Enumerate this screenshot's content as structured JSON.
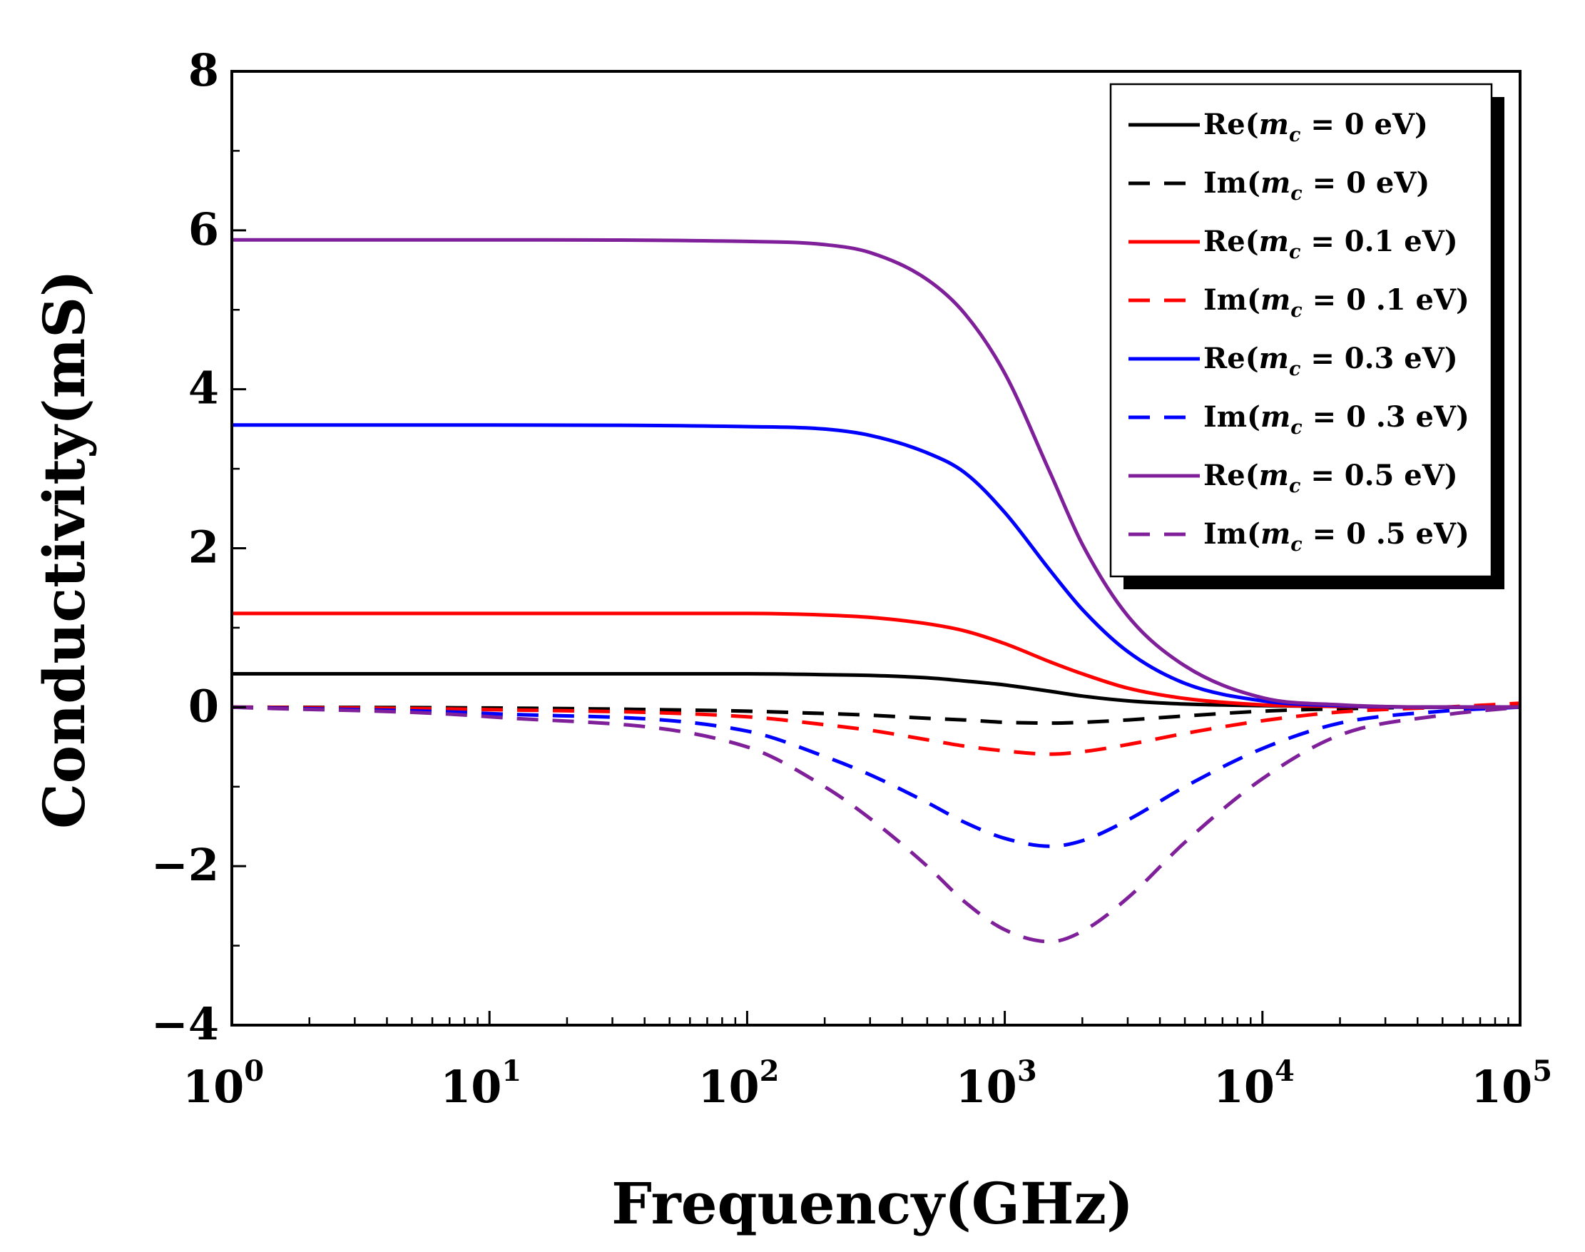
{
  "chart_data": {
    "type": "line",
    "title": "",
    "xlabel": "Frequency(GHz)",
    "ylabel": "Conductivity(mS)",
    "xscale": "log",
    "xlim": [
      1,
      100000
    ],
    "ylim": [
      -4,
      8
    ],
    "x_ticks": [
      {
        "base": "10",
        "exp": "0",
        "value": 1
      },
      {
        "base": "10",
        "exp": "1",
        "value": 10
      },
      {
        "base": "10",
        "exp": "2",
        "value": 100
      },
      {
        "base": "10",
        "exp": "3",
        "value": 1000
      },
      {
        "base": "10",
        "exp": "4",
        "value": 10000
      },
      {
        "base": "10",
        "exp": "5",
        "value": 100000
      }
    ],
    "y_ticks": [
      {
        "label": "8",
        "value": 8
      },
      {
        "label": "6",
        "value": 6
      },
      {
        "label": "4",
        "value": 4
      },
      {
        "label": "2",
        "value": 2
      },
      {
        "label": "0",
        "value": 0
      },
      {
        "label": "−2",
        "value": -2
      },
      {
        "label": "−4",
        "value": -4
      }
    ],
    "legend_position": "top-right",
    "x": [
      1,
      10,
      100,
      200,
      300,
      500,
      700,
      1000,
      1500,
      2000,
      3000,
      5000,
      10000,
      20000,
      50000,
      100000
    ],
    "series": [
      {
        "name_prefix": "Re(",
        "name_var": "m",
        "name_sub": "c",
        "name_suffix": " = 0 eV)",
        "color": "#000000",
        "dash": "solid",
        "values": [
          0.42,
          0.42,
          0.42,
          0.41,
          0.4,
          0.37,
          0.33,
          0.28,
          0.2,
          0.14,
          0.08,
          0.04,
          0.02,
          0.01,
          0.0,
          0.0
        ]
      },
      {
        "name_prefix": "Im(",
        "name_var": "m",
        "name_sub": "c",
        "name_suffix": " = 0 eV)",
        "color": "#000000",
        "dash": "dashed",
        "values": [
          0.0,
          -0.01,
          -0.05,
          -0.08,
          -0.1,
          -0.14,
          -0.16,
          -0.19,
          -0.2,
          -0.19,
          -0.16,
          -0.11,
          -0.05,
          -0.02,
          0.0,
          0.0
        ]
      },
      {
        "name_prefix": "Re(",
        "name_var": "m",
        "name_sub": "c",
        "name_suffix": " = 0.1 eV)",
        "color": "#ff0000",
        "dash": "solid",
        "values": [
          1.18,
          1.18,
          1.18,
          1.16,
          1.13,
          1.05,
          0.96,
          0.8,
          0.57,
          0.42,
          0.24,
          0.11,
          0.03,
          0.01,
          0.0,
          0.0
        ]
      },
      {
        "name_prefix": "Im(",
        "name_var": "m",
        "name_sub": "c",
        "name_suffix": " = 0 .1 eV)",
        "color": "#ff0000",
        "dash": "dashed",
        "values": [
          0.0,
          -0.03,
          -0.12,
          -0.22,
          -0.29,
          -0.41,
          -0.49,
          -0.55,
          -0.59,
          -0.56,
          -0.47,
          -0.33,
          -0.17,
          -0.06,
          0.0,
          0.05
        ]
      },
      {
        "name_prefix": "Re(",
        "name_var": "m",
        "name_sub": "c",
        "name_suffix": " = 0.3 eV)",
        "color": "#0000ff",
        "dash": "solid",
        "values": [
          3.55,
          3.55,
          3.53,
          3.5,
          3.42,
          3.2,
          2.95,
          2.45,
          1.72,
          1.23,
          0.7,
          0.3,
          0.08,
          0.02,
          0.0,
          0.0
        ]
      },
      {
        "name_prefix": "Im(",
        "name_var": "m",
        "name_sub": "c",
        "name_suffix": " = 0 .3 eV)",
        "color": "#0000ff",
        "dash": "dashed",
        "values": [
          0.0,
          -0.08,
          -0.3,
          -0.62,
          -0.85,
          -1.2,
          -1.45,
          -1.65,
          -1.75,
          -1.68,
          -1.42,
          -1.0,
          -0.52,
          -0.2,
          -0.05,
          0.0
        ]
      },
      {
        "name_prefix": "Re(",
        "name_var": "m",
        "name_sub": "c",
        "name_suffix": " = 0.5 eV)",
        "color": "#7f1f9a",
        "dash": "solid",
        "values": [
          5.88,
          5.88,
          5.86,
          5.82,
          5.72,
          5.38,
          4.95,
          4.2,
          2.95,
          2.05,
          1.15,
          0.52,
          0.12,
          0.03,
          0.0,
          0.0
        ]
      },
      {
        "name_prefix": "Im(",
        "name_var": "m",
        "name_sub": "c",
        "name_suffix": " = 0 .5 eV)",
        "color": "#7f1f9a",
        "dash": "dashed",
        "values": [
          0.0,
          -0.12,
          -0.5,
          -1.0,
          -1.4,
          -2.0,
          -2.45,
          -2.8,
          -2.95,
          -2.82,
          -2.4,
          -1.7,
          -0.9,
          -0.35,
          -0.1,
          0.0
        ]
      }
    ]
  }
}
